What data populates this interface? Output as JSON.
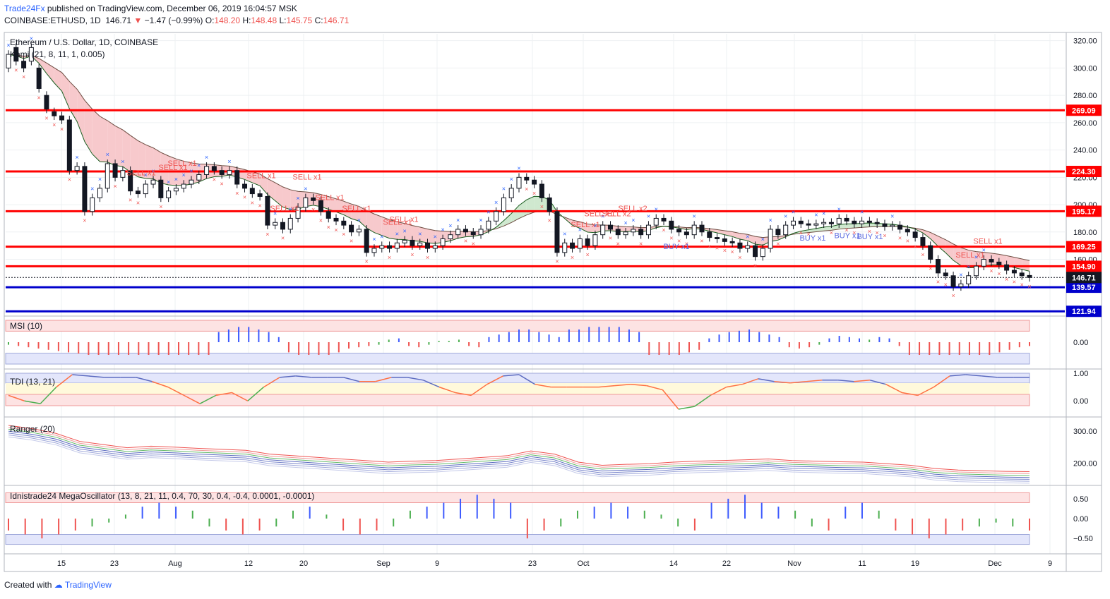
{
  "header": {
    "publisher": "Trade24Fx",
    "published_text": " published on TradingView.com, December 06, 2019 16:04:57 MSK",
    "symbol_line": "COINBASE:ETHUSD, 1D",
    "last": "146.71",
    "arrow": "▼",
    "change": "−1.47 (−0.99%)",
    "o_label": "O:",
    "o": "148.20",
    "h_label": "H:",
    "h": "148.48",
    "l_label": "L:",
    "l": "145.75",
    "c_label": "C:",
    "c": "146.71"
  },
  "footer": {
    "created": "Created with",
    "brand": "TradingView"
  },
  "colors": {
    "bull_marker": "#2962ff",
    "bear_marker": "#ef5350",
    "level_line": "#ff0000",
    "support_line": "#0000cc",
    "buy_text": "#5b6be0",
    "sell_text": "#ef5350",
    "cloud_bear": "#f7c9cc",
    "cloud_bull": "#cfe8cf"
  },
  "chart_data": [
    {
      "type": "candlestick",
      "title": "Ethereum / U.S. Dollar, 1D, COINBASE",
      "indicator_label": "Kami (21, 8, 11, 1, 0.005)",
      "ylim": [
        120,
        325
      ],
      "y_ticks": [
        "320.00",
        "300.00",
        "280.00",
        "260.00",
        "240.00",
        "220.00",
        "200.00",
        "180.00",
        "160.00"
      ],
      "x_ticks": [
        "15",
        "23",
        "Aug",
        "12",
        "20",
        "Sep",
        "9",
        "23",
        "Oct",
        "14",
        "22",
        "Nov",
        "11",
        "19",
        "Dec",
        "9"
      ],
      "levels": [
        {
          "label": "269.09",
          "value": 269.09,
          "color": "#ff0000"
        },
        {
          "label": "224.30",
          "value": 224.3,
          "color": "#ff0000"
        },
        {
          "label": "195.17",
          "value": 195.17,
          "color": "#ff0000"
        },
        {
          "label": "169.25",
          "value": 169.25,
          "color": "#ff0000"
        },
        {
          "label": "154.90",
          "value": 154.9,
          "color": "#ff0000"
        },
        {
          "label": "139.57",
          "value": 139.57,
          "color": "#0000cc"
        },
        {
          "label": "121.94",
          "value": 121.94,
          "color": "#0000cc"
        }
      ],
      "last_price": {
        "label": "146.71",
        "value": 146.71
      },
      "closes": [
        310,
        305,
        300,
        315,
        285,
        270,
        265,
        262,
        225,
        228,
        195,
        205,
        212,
        230,
        220,
        225,
        210,
        208,
        215,
        218,
        205,
        210,
        212,
        215,
        218,
        222,
        228,
        225,
        222,
        225,
        215,
        212,
        208,
        206,
        185,
        187,
        182,
        190,
        198,
        205,
        203,
        195,
        190,
        188,
        185,
        180,
        182,
        165,
        168,
        170,
        168,
        172,
        174,
        170,
        172,
        168,
        170,
        175,
        178,
        182,
        180,
        178,
        182,
        188,
        195,
        205,
        212,
        220,
        218,
        215,
        205,
        195,
        165,
        172,
        168,
        175,
        170,
        178,
        185,
        182,
        178,
        180,
        182,
        178,
        185,
        190,
        188,
        182,
        180,
        178,
        185,
        180,
        176,
        175,
        173,
        172,
        168,
        170,
        162,
        168,
        182,
        178,
        185,
        188,
        186,
        185,
        186,
        187,
        186,
        190,
        188,
        186,
        188,
        187,
        186,
        184,
        185,
        182,
        180,
        176,
        170,
        160,
        150,
        148,
        140,
        142,
        148,
        155,
        160,
        158,
        156,
        152,
        150,
        148,
        146.71
      ],
      "opens": [
        300,
        315,
        305,
        305,
        300,
        280,
        268,
        265,
        262,
        225,
        228,
        195,
        205,
        212,
        230,
        220,
        225,
        210,
        208,
        215,
        218,
        205,
        210,
        212,
        215,
        218,
        222,
        228,
        225,
        222,
        225,
        215,
        212,
        208,
        206,
        185,
        187,
        182,
        190,
        198,
        205,
        203,
        195,
        190,
        188,
        185,
        180,
        182,
        165,
        168,
        170,
        168,
        172,
        174,
        170,
        172,
        168,
        170,
        175,
        178,
        182,
        180,
        178,
        182,
        188,
        195,
        205,
        212,
        220,
        218,
        215,
        205,
        195,
        165,
        172,
        168,
        175,
        170,
        178,
        185,
        182,
        178,
        180,
        182,
        178,
        185,
        190,
        188,
        182,
        180,
        178,
        185,
        180,
        176,
        175,
        173,
        172,
        168,
        170,
        162,
        168,
        182,
        178,
        185,
        188,
        186,
        185,
        186,
        187,
        186,
        190,
        188,
        186,
        188,
        187,
        186,
        184,
        185,
        182,
        180,
        176,
        170,
        160,
        150,
        148,
        140,
        142,
        148,
        155,
        160,
        158,
        156,
        152,
        150,
        148.2
      ],
      "annotations": [
        "SELL x1",
        "SELL x1",
        "SELL x1",
        "SELL x1",
        "SELL x1",
        "SELL x1",
        "SELL x1",
        "SELL x1",
        "SELL x1",
        "SELL x1",
        "SELL x1",
        "SELL x1",
        "SELL x2",
        "SELL x2",
        "BUY x1",
        "BUY x1",
        "BUY x1",
        "BUY x1",
        "SELL x1",
        "SELL x1"
      ]
    },
    {
      "type": "bar",
      "title": "MSI (10)",
      "y_ticks": [
        "0.00"
      ],
      "values": [
        -0.2,
        -0.3,
        -0.4,
        -0.5,
        -0.6,
        -0.7,
        -0.8,
        -0.9,
        -1,
        -1,
        -1,
        -1,
        -1,
        -1,
        -1,
        -1,
        -1,
        -1,
        -1,
        -1,
        -1,
        0.8,
        1,
        1.2,
        1.2,
        1,
        0.8,
        0.4,
        -0.8,
        -1,
        -1,
        -1,
        -1,
        -0.8,
        -0.5,
        -0.4,
        -0.3,
        -0.2,
        0.2,
        0.3,
        -0.3,
        -0.4,
        -0.2,
        0.1,
        0.1,
        0.2,
        -0.3,
        -0.4,
        0.4,
        0.6,
        0.8,
        1,
        1,
        0.8,
        0.6,
        0.4,
        1,
        1,
        1.2,
        1.2,
        1.2,
        1.2,
        1,
        0.8,
        -1,
        -1,
        -1,
        -1,
        -0.8,
        -0.6,
        0.3,
        0.6,
        0.8,
        0.9,
        1,
        0.8,
        0.6,
        0.4,
        -0.4,
        -0.5,
        -0.4,
        -0.2,
        0.3,
        0.5,
        0.4,
        0.3,
        0.2,
        0.4,
        0.3,
        -0.3,
        -1,
        -1,
        -1,
        -1,
        -1,
        -1,
        -1,
        -1,
        -1,
        -0.8,
        -0.6,
        -0.4,
        -0.3
      ]
    },
    {
      "type": "line",
      "title": "TDI (13, 21)",
      "y_ticks": [
        "1.00",
        "0.00"
      ],
      "values": [
        0.2,
        0,
        -0.1,
        0.5,
        0.95,
        0.9,
        0.85,
        0.85,
        0.85,
        0.7,
        0.5,
        0.2,
        -0.1,
        0.2,
        0.3,
        0,
        0.5,
        0.85,
        0.9,
        0.85,
        0.85,
        0.85,
        0.7,
        0.7,
        0.85,
        0.85,
        0.75,
        0.5,
        0.3,
        0.2,
        0.6,
        0.9,
        0.95,
        0.6,
        0.5,
        0.5,
        0.5,
        0.5,
        0.55,
        0.6,
        0.55,
        0.4,
        -0.3,
        -0.2,
        0.2,
        0.5,
        0.6,
        0.8,
        0.7,
        0.65,
        0.7,
        0.75,
        0.75,
        0.7,
        0.75,
        0.6,
        0.3,
        0.2,
        0.5,
        0.9,
        0.95,
        0.9,
        0.85,
        0.85,
        0.85
      ]
    },
    {
      "type": "line",
      "title": "Ranger (20)",
      "y_ticks": [
        "300.00",
        "200.00"
      ],
      "values": [
        300,
        290,
        275,
        250,
        240,
        230,
        235,
        232,
        228,
        225,
        222,
        210,
        205,
        200,
        195,
        190,
        185,
        188,
        190,
        195,
        200,
        205,
        220,
        210,
        185,
        175,
        178,
        180,
        185,
        188,
        190,
        192,
        195,
        190,
        188,
        186,
        185,
        180,
        175,
        165,
        160,
        158,
        156,
        155
      ]
    },
    {
      "type": "bar",
      "title": "Idnistrade24 MegaOscillator (13, 8, 21, 11, 0.4, 70, 30, 0.4, -0.4, 0.0001, -0.0001)",
      "y_ticks": [
        "0.50",
        "0.00",
        "−0.50"
      ],
      "values": [
        -0.3,
        -0.4,
        -0.5,
        -0.4,
        -0.3,
        -0.2,
        -0.1,
        0.1,
        0.3,
        0.4,
        0.3,
        0.2,
        -0.2,
        -0.3,
        -0.4,
        -0.3,
        -0.2,
        0.2,
        0.3,
        0.1,
        -0.3,
        -0.4,
        -0.3,
        -0.2,
        0.2,
        0.3,
        0.4,
        0.5,
        0.6,
        0.5,
        0.4,
        -0.5,
        -0.3,
        -0.2,
        0.2,
        0.3,
        0.4,
        0.3,
        0.2,
        0.1,
        -0.2,
        -0.3,
        0.4,
        0.5,
        0.6,
        0.4,
        0.3,
        0.2,
        -0.2,
        -0.3,
        0.3,
        0.4,
        0.2,
        -0.3,
        -0.4,
        -0.5,
        -0.4,
        -0.3,
        -0.2,
        -0.1,
        -0.2,
        -0.3
      ]
    }
  ]
}
